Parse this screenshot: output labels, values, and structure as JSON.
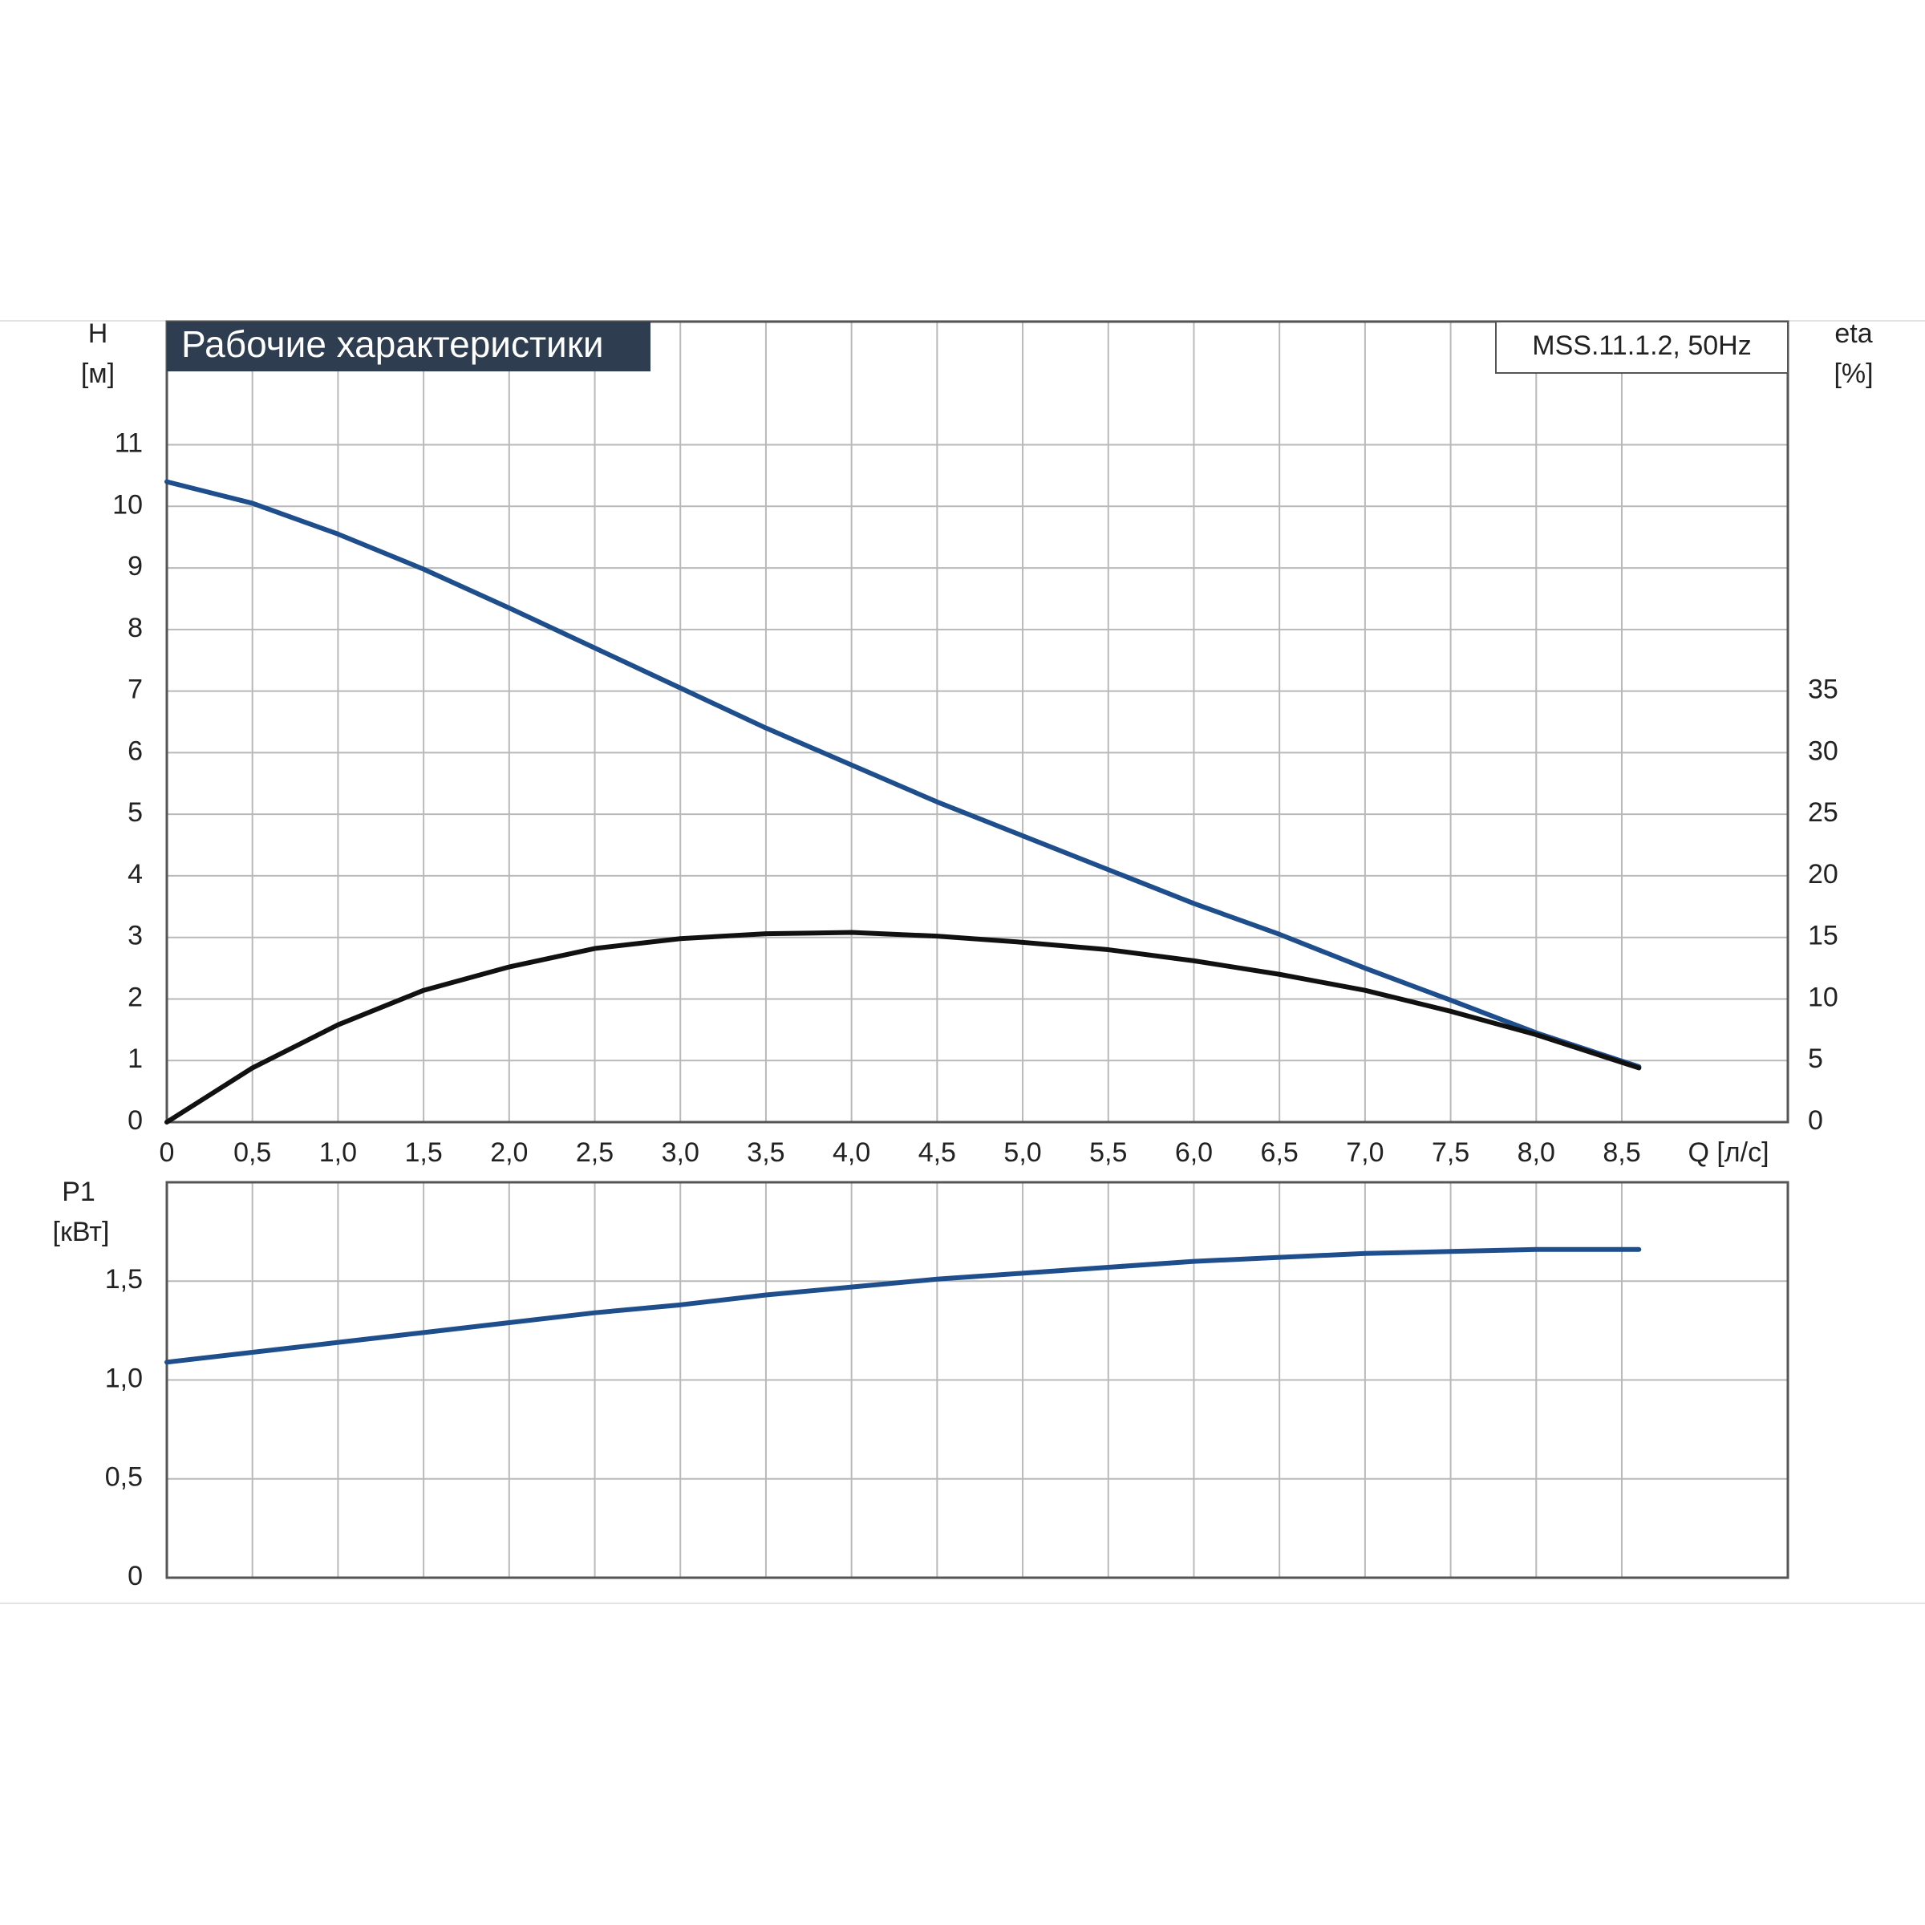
{
  "chart_data": [
    {
      "type": "line",
      "title": "Рабочие характеристики",
      "subtitle": "MSS.11.1.2, 50Hz",
      "ylabel": "H",
      "yunit": "[м]",
      "y2label": "eta",
      "y2unit": "[%]",
      "xlabel": "Q [л/с]",
      "x": [
        0,
        0.5,
        1.0,
        1.5,
        2.0,
        2.5,
        3.0,
        3.5,
        4.0,
        4.5,
        5.0,
        5.5,
        6.0,
        6.5,
        7.0,
        7.5,
        8.0,
        8.6
      ],
      "series": [
        {
          "name": "H",
          "color": "#1f4e8c",
          "axis": "y",
          "values": [
            10.4,
            10.05,
            9.55,
            8.98,
            8.35,
            7.7,
            7.05,
            6.4,
            5.8,
            5.2,
            4.65,
            4.1,
            3.55,
            3.05,
            2.5,
            1.98,
            1.45,
            0.9
          ]
        },
        {
          "name": "eta",
          "color": "#111111",
          "axis": "y2",
          "values": [
            0,
            4.4,
            7.9,
            10.7,
            12.6,
            14.1,
            14.9,
            15.3,
            15.4,
            15.1,
            14.6,
            14.0,
            13.1,
            12.0,
            10.7,
            9.0,
            7.1,
            4.4
          ]
        }
      ],
      "xlim": [
        0,
        9.47
      ],
      "xticks": [
        0,
        {
          "value": 0.5,
          "label": "0,5"
        },
        {
          "value": 1.0,
          "label": "1,0"
        },
        {
          "value": 1.5,
          "label": "1,5"
        },
        {
          "value": 2.0,
          "label": "2,0"
        },
        {
          "value": 2.5,
          "label": "2,5"
        },
        {
          "value": 3.0,
          "label": "3,0"
        },
        {
          "value": 3.5,
          "label": "3,5"
        },
        {
          "value": 4.0,
          "label": "4,0"
        },
        {
          "value": 4.5,
          "label": "4,5"
        },
        {
          "value": 5.0,
          "label": "5,0"
        },
        {
          "value": 5.5,
          "label": "5,5"
        },
        {
          "value": 6.0,
          "label": "6,0"
        },
        {
          "value": 6.5,
          "label": "6,5"
        },
        {
          "value": 7.0,
          "label": "7,0"
        },
        {
          "value": 7.5,
          "label": "7,5"
        },
        {
          "value": 8.0,
          "label": "8,0"
        },
        {
          "value": 8.5,
          "label": "8,5"
        }
      ],
      "ylim": [
        0,
        13
      ],
      "yticks": [
        0,
        1,
        2,
        3,
        4,
        5,
        6,
        7,
        8,
        9,
        10,
        11
      ],
      "y2lim": [
        0,
        65
      ],
      "y2ticks": [
        0,
        5,
        10,
        15,
        20,
        25,
        30,
        35
      ],
      "grid": true
    },
    {
      "type": "line",
      "ylabel": "P1",
      "yunit": "[кВт]",
      "x": [
        0,
        0.5,
        1.0,
        1.5,
        2.0,
        2.5,
        3.0,
        3.5,
        4.0,
        4.5,
        5.0,
        5.5,
        6.0,
        6.5,
        7.0,
        7.5,
        8.0,
        8.6
      ],
      "series": [
        {
          "name": "P1",
          "color": "#1f4e8c",
          "axis": "y",
          "values": [
            1.09,
            1.14,
            1.19,
            1.24,
            1.29,
            1.34,
            1.38,
            1.43,
            1.47,
            1.51,
            1.54,
            1.57,
            1.6,
            1.62,
            1.64,
            1.65,
            1.66,
            1.66
          ]
        }
      ],
      "xlim": [
        0,
        9.47
      ],
      "ylim": [
        0,
        2
      ],
      "yticks": [
        0,
        {
          "value": 0.5,
          "label": "0,5"
        },
        {
          "value": 1.0,
          "label": "1,0"
        },
        {
          "value": 1.5,
          "label": "1,5"
        }
      ],
      "grid": true
    }
  ]
}
